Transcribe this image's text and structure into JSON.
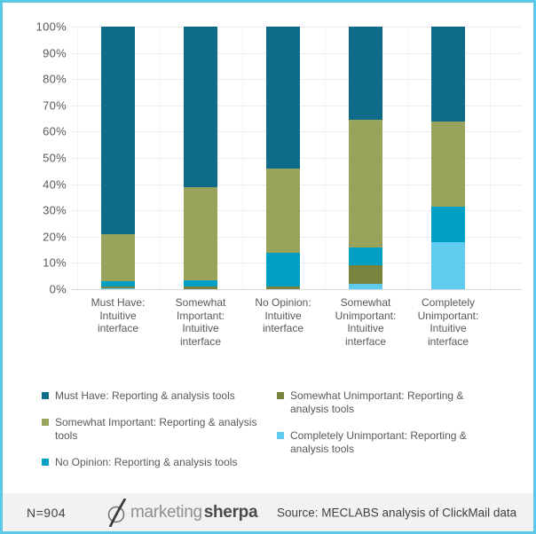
{
  "chart_data": {
    "type": "bar",
    "stacked": true,
    "units": "percent",
    "title": "",
    "xlabel": "",
    "ylabel": "",
    "grid": true,
    "legend_position": "bottom",
    "y_axis": {
      "min": 0,
      "max": 100,
      "step": 10,
      "suffix": "%"
    },
    "categories": [
      {
        "label": "Must Have: Intuitive interface",
        "lines": [
          "Must Have:",
          "Intuitive",
          "interface"
        ]
      },
      {
        "label": "Somewhat Important: Intuitive interface",
        "lines": [
          "Somewhat",
          "Important:",
          "Intuitive",
          "interface"
        ]
      },
      {
        "label": "No Opinion: Intuitive interface",
        "lines": [
          "No Opinion:",
          "Intuitive",
          "interface"
        ]
      },
      {
        "label": "Somewhat Unimportant: Intuitive interface",
        "lines": [
          "Somewhat",
          "Unimportant:",
          "Intuitive",
          "interface"
        ]
      },
      {
        "label": "Completely Unimportant: Intuitive interface",
        "lines": [
          "Completely",
          "Unimportant:",
          "Intuitive",
          "interface"
        ]
      }
    ],
    "series": [
      {
        "name": "Must Have: Reporting & analysis tools",
        "color": "#0e6b8a",
        "values": [
          79,
          61,
          54,
          35.5,
          36
        ]
      },
      {
        "name": "Somewhat Important: Reporting & analysis tools",
        "color": "#9aa35b",
        "values": [
          18,
          35.5,
          32,
          48.5,
          32.5
        ]
      },
      {
        "name": "No Opinion: Reporting & analysis tools",
        "color": "#00a0c4",
        "values": [
          2,
          2.5,
          13,
          7,
          13.5
        ]
      },
      {
        "name": "Somewhat Unimportant: Reporting & analysis tools",
        "color": "#79833e",
        "values": [
          0.5,
          1,
          1,
          7,
          0
        ]
      },
      {
        "name": "Completely Unimportant: Reporting & analysis tools",
        "color": "#5ecbef",
        "values": [
          0.5,
          0,
          0,
          2,
          18
        ]
      }
    ],
    "stack_order_bottom_to_top": [
      4,
      3,
      2,
      1,
      0
    ]
  },
  "legend": {
    "columns": [
      [
        0,
        1,
        2
      ],
      [
        3,
        4
      ]
    ]
  },
  "footer": {
    "n_label": "N=904",
    "logo_light": "marketing",
    "logo_bold": "sherpa",
    "source": "Source: MECLABS analysis of ClickMail data"
  },
  "colors": {
    "frame_border": "#5bc8e8",
    "footer_background": "#f2f2f2",
    "axis_text": "#595959",
    "gridline": "#ededed",
    "baseline": "#d9d9d9"
  }
}
